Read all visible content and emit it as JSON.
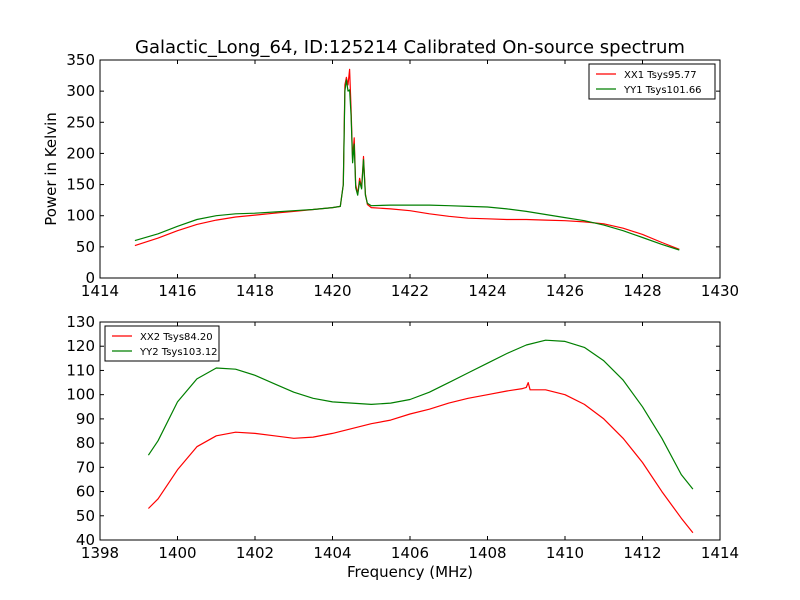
{
  "title": "Galactic_Long_64, ID:125214 Calibrated On-source spectrum",
  "colors": {
    "xx": "#ff0000",
    "yy": "#007f00"
  },
  "chart_data": [
    {
      "type": "line",
      "xlabel": "",
      "ylabel": "Power in Kelvin",
      "xlim": [
        1414,
        1430
      ],
      "ylim": [
        0,
        350
      ],
      "xticks": [
        1414,
        1416,
        1418,
        1420,
        1422,
        1424,
        1426,
        1428,
        1430
      ],
      "yticks": [
        0,
        50,
        100,
        150,
        200,
        250,
        300,
        350
      ],
      "legend_position": "top-right",
      "series": [
        {
          "name": "XX1 Tsys95.77",
          "color": "#ff0000",
          "points": [
            [
              1414.9,
              52
            ],
            [
              1415.5,
              64
            ],
            [
              1416,
              76
            ],
            [
              1416.5,
              86
            ],
            [
              1417,
              93
            ],
            [
              1417.5,
              98
            ],
            [
              1418,
              101
            ],
            [
              1418.5,
              104
            ],
            [
              1419,
              107
            ],
            [
              1419.5,
              110
            ],
            [
              1420,
              113
            ],
            [
              1420.2,
              115
            ],
            [
              1420.28,
              150
            ],
            [
              1420.32,
              310
            ],
            [
              1420.36,
              322
            ],
            [
              1420.4,
              310
            ],
            [
              1420.44,
              335
            ],
            [
              1420.48,
              270
            ],
            [
              1420.52,
              190
            ],
            [
              1420.56,
              225
            ],
            [
              1420.6,
              150
            ],
            [
              1420.65,
              135
            ],
            [
              1420.7,
              160
            ],
            [
              1420.75,
              145
            ],
            [
              1420.8,
              195
            ],
            [
              1420.85,
              135
            ],
            [
              1420.9,
              118
            ],
            [
              1421,
              113
            ],
            [
              1421.5,
              111
            ],
            [
              1422,
              108
            ],
            [
              1422.5,
              103
            ],
            [
              1423,
              99
            ],
            [
              1423.5,
              96
            ],
            [
              1424,
              95
            ],
            [
              1424.5,
              94
            ],
            [
              1425,
              94
            ],
            [
              1425.5,
              93
            ],
            [
              1426,
              92
            ],
            [
              1426.5,
              90
            ],
            [
              1427,
              87
            ],
            [
              1427.5,
              80
            ],
            [
              1428,
              70
            ],
            [
              1428.5,
              57
            ],
            [
              1428.95,
              46
            ]
          ]
        },
        {
          "name": "YY1 Tsys101.66",
          "color": "#007f00",
          "points": [
            [
              1414.9,
              60
            ],
            [
              1415.5,
              71
            ],
            [
              1416,
              83
            ],
            [
              1416.5,
              94
            ],
            [
              1417,
              100
            ],
            [
              1417.5,
              103
            ],
            [
              1418,
              104
            ],
            [
              1418.5,
              106
            ],
            [
              1419,
              108
            ],
            [
              1419.5,
              110
            ],
            [
              1420,
              113
            ],
            [
              1420.2,
              115
            ],
            [
              1420.28,
              150
            ],
            [
              1420.32,
              300
            ],
            [
              1420.36,
              318
            ],
            [
              1420.4,
              300
            ],
            [
              1420.44,
              302
            ],
            [
              1420.48,
              260
            ],
            [
              1420.52,
              185
            ],
            [
              1420.56,
              215
            ],
            [
              1420.6,
              145
            ],
            [
              1420.65,
              133
            ],
            [
              1420.7,
              155
            ],
            [
              1420.75,
              143
            ],
            [
              1420.8,
              190
            ],
            [
              1420.85,
              133
            ],
            [
              1420.9,
              120
            ],
            [
              1421,
              116
            ],
            [
              1421.5,
              117
            ],
            [
              1422,
              117
            ],
            [
              1422.5,
              117
            ],
            [
              1423,
              116
            ],
            [
              1423.5,
              115
            ],
            [
              1424,
              114
            ],
            [
              1424.5,
              111
            ],
            [
              1425,
              107
            ],
            [
              1425.5,
              102
            ],
            [
              1426,
              97
            ],
            [
              1426.5,
              92
            ],
            [
              1427,
              85
            ],
            [
              1427.5,
              76
            ],
            [
              1428,
              65
            ],
            [
              1428.5,
              54
            ],
            [
              1428.95,
              45
            ]
          ]
        }
      ]
    },
    {
      "type": "line",
      "xlabel": "Frequency (MHz)",
      "ylabel": "",
      "xlim": [
        1398,
        1414
      ],
      "ylim": [
        40,
        130
      ],
      "xticks": [
        1398,
        1400,
        1402,
        1404,
        1406,
        1408,
        1410,
        1412,
        1414
      ],
      "yticks": [
        40,
        50,
        60,
        70,
        80,
        90,
        100,
        110,
        120,
        130
      ],
      "legend_position": "top-left",
      "series": [
        {
          "name": "XX2 Tsys84.20",
          "color": "#ff0000",
          "points": [
            [
              1399.25,
              53
            ],
            [
              1399.5,
              57
            ],
            [
              1400,
              69
            ],
            [
              1400.5,
              78.5
            ],
            [
              1401,
              83
            ],
            [
              1401.5,
              84.5
            ],
            [
              1402,
              84
            ],
            [
              1402.5,
              83
            ],
            [
              1403,
              82
            ],
            [
              1403.5,
              82.5
            ],
            [
              1404,
              84
            ],
            [
              1404.5,
              86
            ],
            [
              1405,
              88
            ],
            [
              1405.5,
              89.5
            ],
            [
              1406,
              92
            ],
            [
              1406.5,
              94
            ],
            [
              1407,
              96.5
            ],
            [
              1407.5,
              98.5
            ],
            [
              1408,
              100
            ],
            [
              1408.5,
              101.5
            ],
            [
              1408.9,
              102.5
            ],
            [
              1409,
              103
            ],
            [
              1409.05,
              105
            ],
            [
              1409.1,
              102
            ],
            [
              1409.5,
              102
            ],
            [
              1410,
              100
            ],
            [
              1410.5,
              96
            ],
            [
              1411,
              90
            ],
            [
              1411.5,
              82
            ],
            [
              1412,
              72
            ],
            [
              1412.5,
              60
            ],
            [
              1413,
              49
            ],
            [
              1413.3,
              43
            ]
          ]
        },
        {
          "name": "YY2 Tsys103.12",
          "color": "#007f00",
          "points": [
            [
              1399.25,
              75
            ],
            [
              1399.5,
              81
            ],
            [
              1400,
              97
            ],
            [
              1400.5,
              106.5
            ],
            [
              1401,
              111
            ],
            [
              1401.5,
              110.5
            ],
            [
              1402,
              108
            ],
            [
              1402.5,
              104.5
            ],
            [
              1403,
              101
            ],
            [
              1403.5,
              98.5
            ],
            [
              1404,
              97
            ],
            [
              1404.5,
              96.5
            ],
            [
              1405,
              96
            ],
            [
              1405.5,
              96.5
            ],
            [
              1406,
              98
            ],
            [
              1406.5,
              101
            ],
            [
              1407,
              105
            ],
            [
              1407.5,
              109
            ],
            [
              1408,
              113
            ],
            [
              1408.5,
              117
            ],
            [
              1409,
              120.5
            ],
            [
              1409.5,
              122.5
            ],
            [
              1410,
              122
            ],
            [
              1410.5,
              119.5
            ],
            [
              1411,
              114
            ],
            [
              1411.5,
              106
            ],
            [
              1412,
              95
            ],
            [
              1412.5,
              82
            ],
            [
              1413,
              67
            ],
            [
              1413.3,
              61
            ]
          ]
        }
      ]
    }
  ]
}
